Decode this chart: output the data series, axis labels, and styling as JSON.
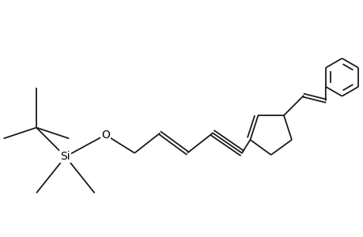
{
  "background_color": "#ffffff",
  "line_color": "#1a1a1a",
  "line_width": 1.3,
  "text_color": "#000000",
  "fig_width": 4.6,
  "fig_height": 3.0,
  "dpi": 100,
  "xlim": [
    0.0,
    10.0
  ],
  "ylim": [
    0.0,
    6.5
  ]
}
